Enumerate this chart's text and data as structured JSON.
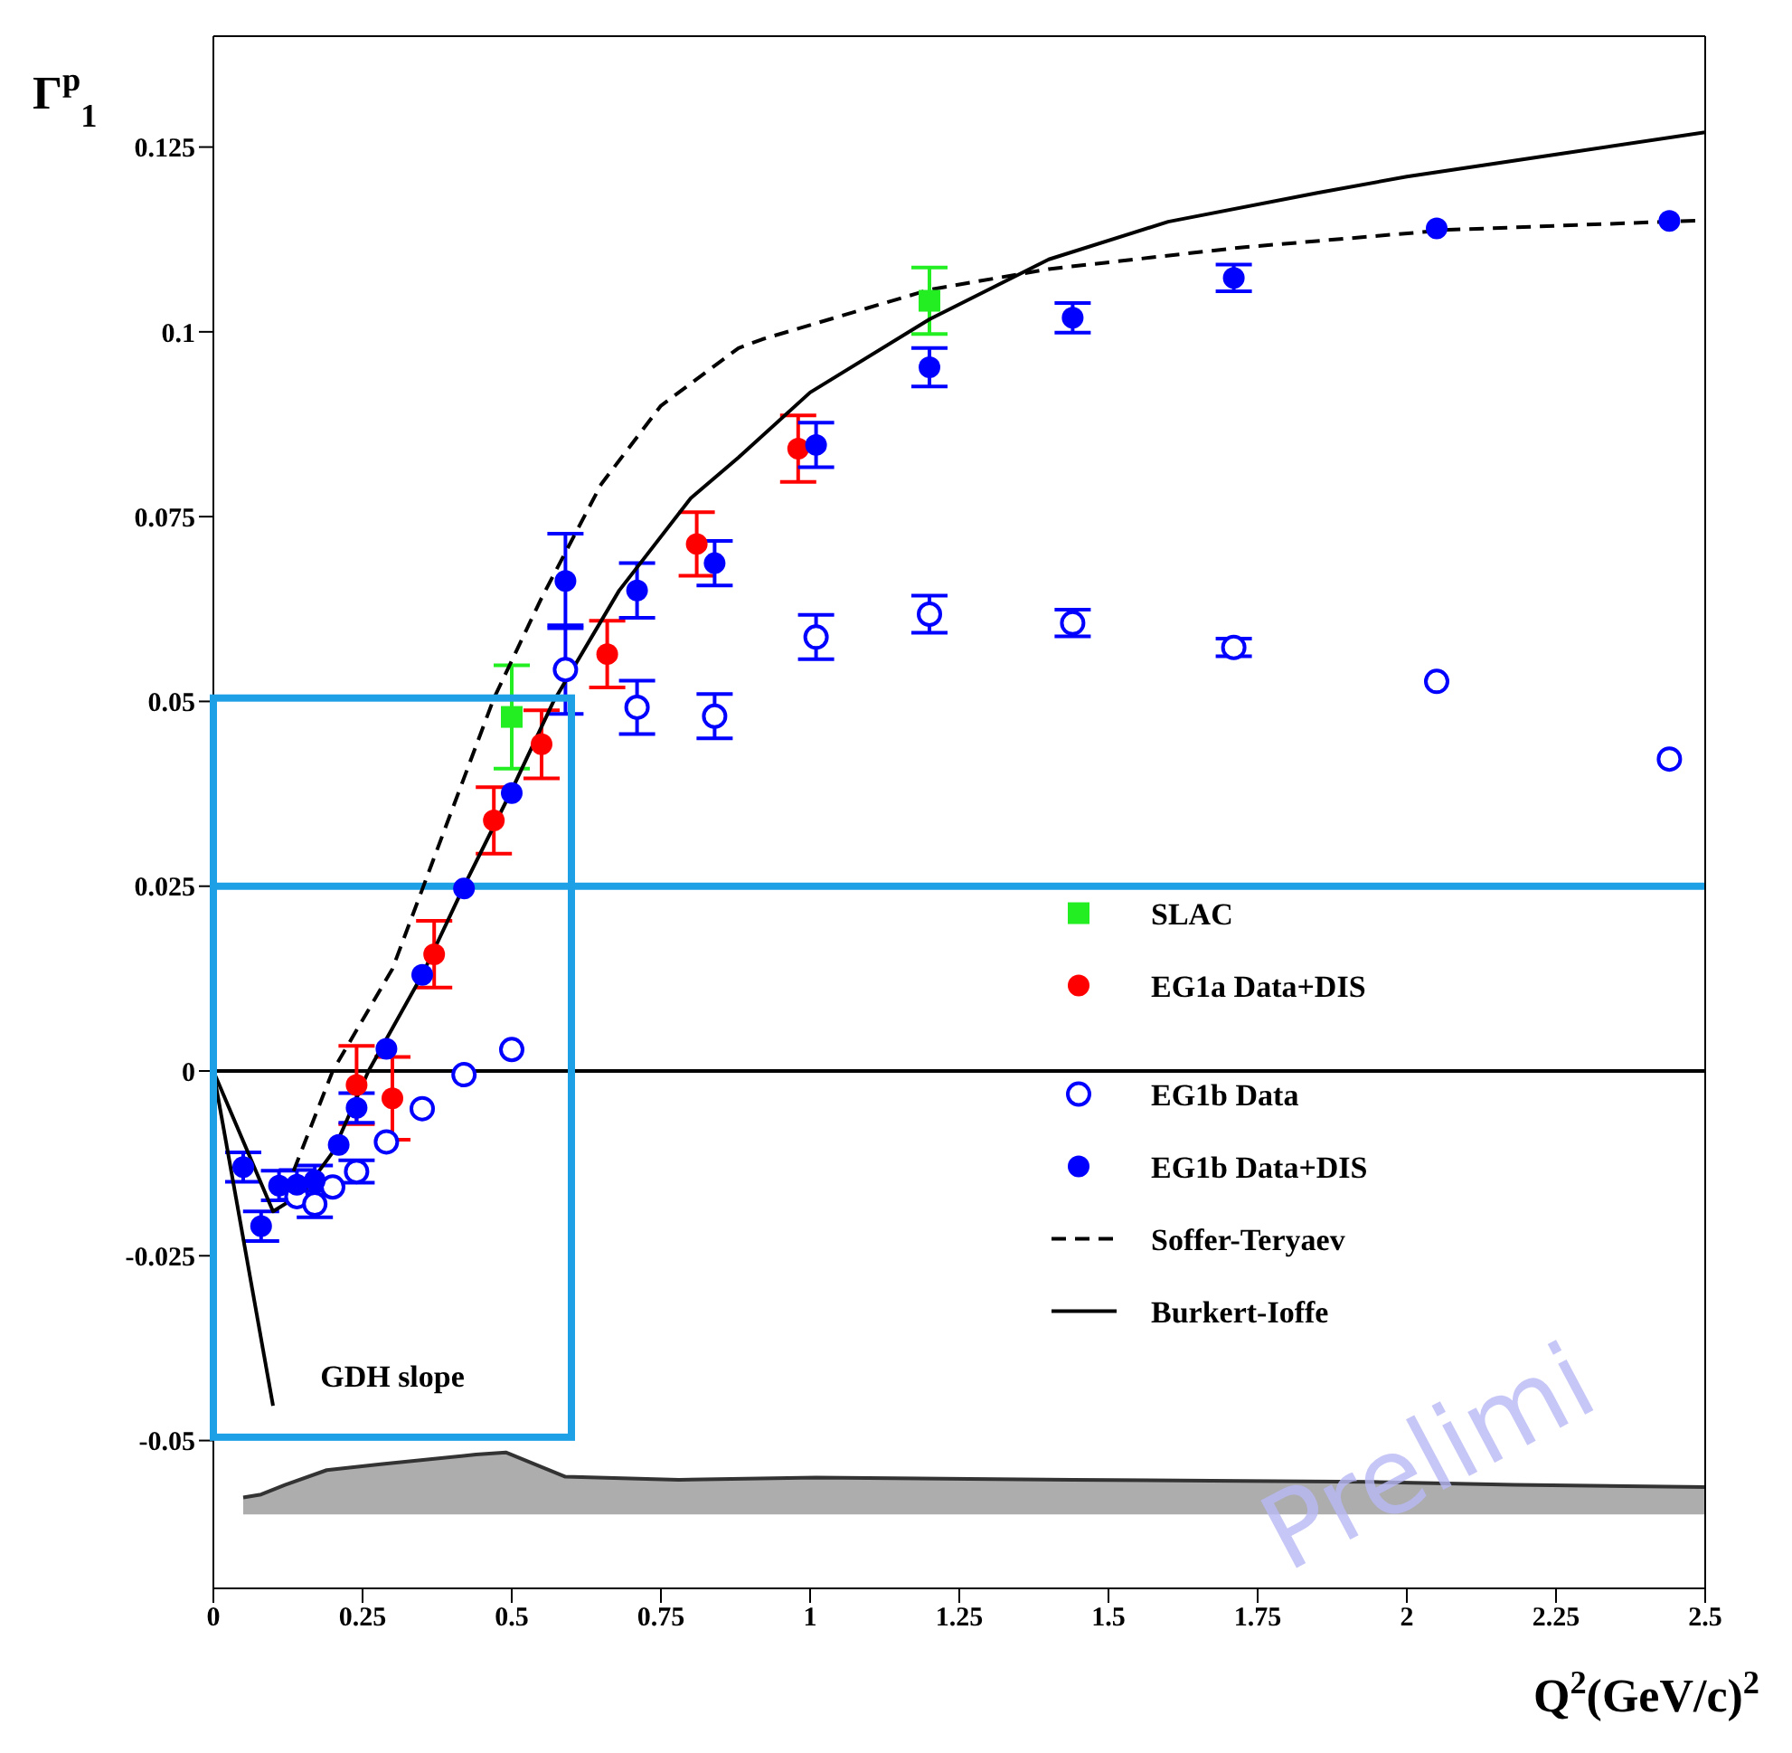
{
  "chart_data": {
    "type": "scatter",
    "xlabel": "Q$^{2}$(GeV/c)$^{2}$",
    "ylabel": "Γ$^{p}$$_{1}$",
    "xlim": [
      0,
      2.5
    ],
    "xticks": [
      0,
      0.25,
      0.5,
      0.75,
      1,
      1.25,
      1.5,
      1.75,
      2,
      2.25,
      2.5
    ],
    "ylim": [
      -0.07,
      0.14
    ],
    "yticks": [
      -0.05,
      -0.025,
      0,
      0.025,
      0.05,
      0.075,
      0.1,
      0.125
    ],
    "grid": false,
    "legend": "right",
    "ref_lines": [
      {
        "axis": "y",
        "value": 0,
        "color": "#000000"
      },
      {
        "axis": "y",
        "value": 0.025,
        "color": "#1ea0e6"
      }
    ],
    "annotations": [
      "GDH slope",
      "Prelimi"
    ],
    "series": [
      {
        "name": "SLAC",
        "marker": "square",
        "color": "#22ee22",
        "x": [
          0.5,
          1.2
        ],
        "values": [
          0.0479,
          0.1042
        ],
        "errors": [
          0.007,
          0.0045
        ]
      },
      {
        "name": "EG1a Data+DIS",
        "marker": "circle",
        "color": "#ff0000",
        "x": [
          0.24,
          0.3,
          0.37,
          0.47,
          0.55,
          0.66,
          0.81,
          0.98
        ],
        "values": [
          -0.0019,
          -0.0037,
          0.0158,
          0.0339,
          0.0442,
          0.0564,
          0.0713,
          0.0842
        ],
        "errors": [
          0.0053,
          0.0056,
          0.0045,
          0.0045,
          0.0046,
          0.0045,
          0.0043,
          0.0045
        ]
      },
      {
        "name": "EG1b Data",
        "marker": "circle-open",
        "color": "#0000ff",
        "x": [
          0.14,
          0.17,
          0.2,
          0.24,
          0.29,
          0.35,
          0.42,
          0.5,
          0.59,
          0.71,
          0.84,
          1.01,
          1.2,
          1.44,
          1.71,
          2.05,
          2.44
        ],
        "values": [
          -0.017,
          -0.018,
          -0.0157,
          -0.0136,
          -0.0096,
          -0.0051,
          -0.0005,
          0.0029,
          0.0543,
          0.0492,
          0.048,
          0.0587,
          0.0618,
          0.0606,
          0.0573,
          0.0527,
          0.0422
        ],
        "errors": [
          null,
          0.0018,
          null,
          0.0015,
          null,
          null,
          null,
          null,
          0.006,
          0.0036,
          0.003,
          0.003,
          0.0025,
          0.0018,
          0.0012,
          null,
          null
        ]
      },
      {
        "name": "EG1b Data+DIS",
        "marker": "circle",
        "color": "#0000ff",
        "x": [
          0.05,
          0.08,
          0.11,
          0.14,
          0.17,
          0.21,
          0.24,
          0.29,
          0.35,
          0.42,
          0.5,
          0.59,
          0.71,
          0.84,
          1.01,
          1.2,
          1.44,
          1.71,
          2.05,
          2.44
        ],
        "values": [
          -0.013,
          -0.021,
          -0.0155,
          -0.0154,
          -0.0148,
          -0.01,
          -0.005,
          0.003,
          0.013,
          0.0247,
          0.0376,
          0.0663,
          0.065,
          0.0687,
          0.0847,
          0.0952,
          0.1019,
          0.1073,
          0.114,
          0.115
        ],
        "errors": [
          0.002,
          0.002,
          0.002,
          0.002,
          0.002,
          null,
          0.002,
          null,
          null,
          null,
          null,
          0.0064,
          0.0037,
          0.003,
          0.003,
          0.0026,
          0.002,
          0.0018,
          null,
          null
        ]
      },
      {
        "name": "Soffer-Teryaev",
        "type": "line",
        "line_style": "dashed",
        "color": "#000000",
        "x": [
          0.12,
          0.2,
          0.3,
          0.47,
          0.55,
          0.65,
          0.75,
          0.88,
          0.92,
          1.2,
          1.4,
          1.72,
          2.07,
          2.5
        ],
        "values": [
          -0.0165,
          0,
          0.0138,
          0.0504,
          0.064,
          0.0794,
          0.09,
          0.0978,
          0.099,
          0.1057,
          0.1085,
          0.1114,
          0.1138,
          0.1151
        ]
      },
      {
        "name": "Burkert-Ioffe",
        "type": "line",
        "line_style": "solid",
        "color": "#000000",
        "x": [
          0,
          0.1,
          0.15,
          0.2,
          0.26,
          0.35,
          0.42,
          0.5,
          0.57,
          0.68,
          0.8,
          0.88,
          1,
          1.2,
          1.4,
          1.6,
          1.85,
          2,
          2.25,
          2.5
        ],
        "values": [
          0,
          -0.019,
          -0.0165,
          -0.011,
          0,
          0.013,
          0.025,
          0.038,
          0.05,
          0.065,
          0.0775,
          0.083,
          0.0918,
          0.1017,
          0.1098,
          0.1149,
          0.1188,
          0.121,
          0.124,
          0.127
        ]
      },
      {
        "type": "line",
        "line_style": "solid",
        "color": "#000000",
        "x": [
          0,
          0.1
        ],
        "values": [
          0,
          -0.0453
        ]
      },
      {
        "type": "line",
        "line_style": "solid",
        "color": "#333333",
        "upper": [
          -0.0577,
          -0.0573,
          -0.056,
          -0.054,
          -0.0532,
          -0.0519,
          -0.0516,
          -0.0549,
          -0.0553,
          -0.055,
          -0.0553,
          -0.0556,
          -0.056,
          -0.0563
        ],
        "x": [
          0.05,
          0.08,
          0.12,
          0.19,
          0.28,
          0.44,
          0.49,
          0.59,
          0.78,
          1.01,
          1.44,
          1.94,
          2.18,
          2.5
        ],
        "values": [
          -0.0577,
          -0.0573,
          -0.056,
          -0.054,
          -0.0532,
          -0.0519,
          -0.0516,
          -0.0549,
          -0.0553,
          -0.055,
          -0.0553,
          -0.0556,
          -0.056,
          -0.0563
        ],
        "lower": [
          -0.06,
          -0.06,
          -0.06,
          -0.06,
          -0.06,
          -0.06,
          -0.06,
          -0.06,
          -0.06,
          -0.06,
          -0.06,
          -0.06,
          -0.06,
          -0.06
        ]
      }
    ]
  }
}
